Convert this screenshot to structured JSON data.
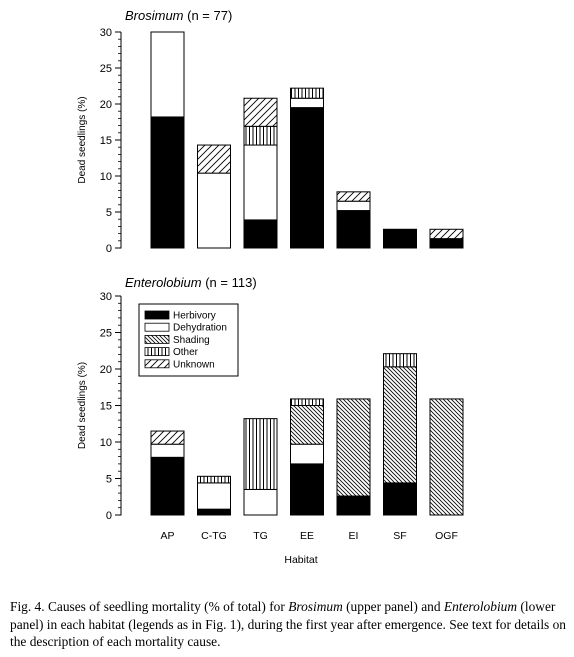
{
  "caption": {
    "prefix": "Fig. 4. Causes of seedling mortality (% of total) for ",
    "taxon1": "Brosimum",
    "mid1": " (upper panel) and ",
    "taxon2": "Enterolobium",
    "suffix": " (lower panel) in each habitat (legends as in Fig. 1), during the first year after emergence. See text for details on the description of each mortality cause."
  },
  "chart_data": [
    {
      "type": "bar",
      "stacked": true,
      "title_italic": "Brosimum",
      "title_rest": " (n = 77)",
      "xlabel": "",
      "ylabel": "Dead seedlings (%)",
      "ylim": [
        0,
        30
      ],
      "yticks": [
        "0",
        "5",
        "10",
        "15",
        "20",
        "25",
        "30"
      ],
      "categories": [
        "AP",
        "C-TG",
        "TG",
        "EE",
        "EI",
        "SF",
        "OGF"
      ],
      "show_tick_labels": false,
      "series": [
        {
          "name": "Herbivory",
          "pattern": "black",
          "values": [
            18.2,
            0,
            3.9,
            19.5,
            5.2,
            2.6,
            1.3
          ]
        },
        {
          "name": "Dehydration",
          "pattern": "white",
          "values": [
            11.8,
            10.4,
            10.4,
            1.3,
            1.3,
            0,
            0
          ]
        },
        {
          "name": "Shading",
          "pattern": "hatch-back",
          "values": [
            0,
            0,
            0,
            0,
            0,
            0,
            0
          ]
        },
        {
          "name": "Other",
          "pattern": "vertical",
          "values": [
            0,
            0,
            2.6,
            1.4,
            0,
            0,
            0
          ]
        },
        {
          "name": "Unknown",
          "pattern": "hatch-fwd",
          "values": [
            0,
            3.9,
            3.9,
            0,
            1.3,
            0,
            1.3
          ]
        }
      ]
    },
    {
      "type": "bar",
      "stacked": true,
      "title_italic": "Enterolobium",
      "title_rest": " (n = 113)",
      "xlabel": "Habitat",
      "ylabel": "Dead seedlings (%)",
      "ylim": [
        0,
        30
      ],
      "yticks": [
        "0",
        "5",
        "10",
        "15",
        "20",
        "25",
        "30"
      ],
      "categories": [
        "AP",
        "C-TG",
        "TG",
        "EE",
        "EI",
        "SF",
        "OGF"
      ],
      "show_tick_labels": true,
      "legend": {
        "position": "top-left",
        "items": [
          "Herbivory",
          "Dehydration",
          "Shading",
          "Other",
          "Unknown"
        ]
      },
      "series": [
        {
          "name": "Herbivory",
          "pattern": "black",
          "values": [
            7.9,
            0.8,
            0,
            7.0,
            2.6,
            4.4,
            0
          ]
        },
        {
          "name": "Dehydration",
          "pattern": "white",
          "values": [
            1.8,
            3.6,
            3.5,
            2.7,
            0,
            0,
            0
          ]
        },
        {
          "name": "Shading",
          "pattern": "hatch-back",
          "values": [
            0,
            0,
            0,
            5.3,
            13.3,
            15.9,
            15.9
          ]
        },
        {
          "name": "Other",
          "pattern": "vertical",
          "values": [
            0,
            0.9,
            9.7,
            0.9,
            0,
            1.8,
            0
          ]
        },
        {
          "name": "Unknown",
          "pattern": "hatch-fwd",
          "values": [
            1.8,
            0,
            0,
            0,
            0,
            0,
            0
          ]
        }
      ]
    }
  ]
}
